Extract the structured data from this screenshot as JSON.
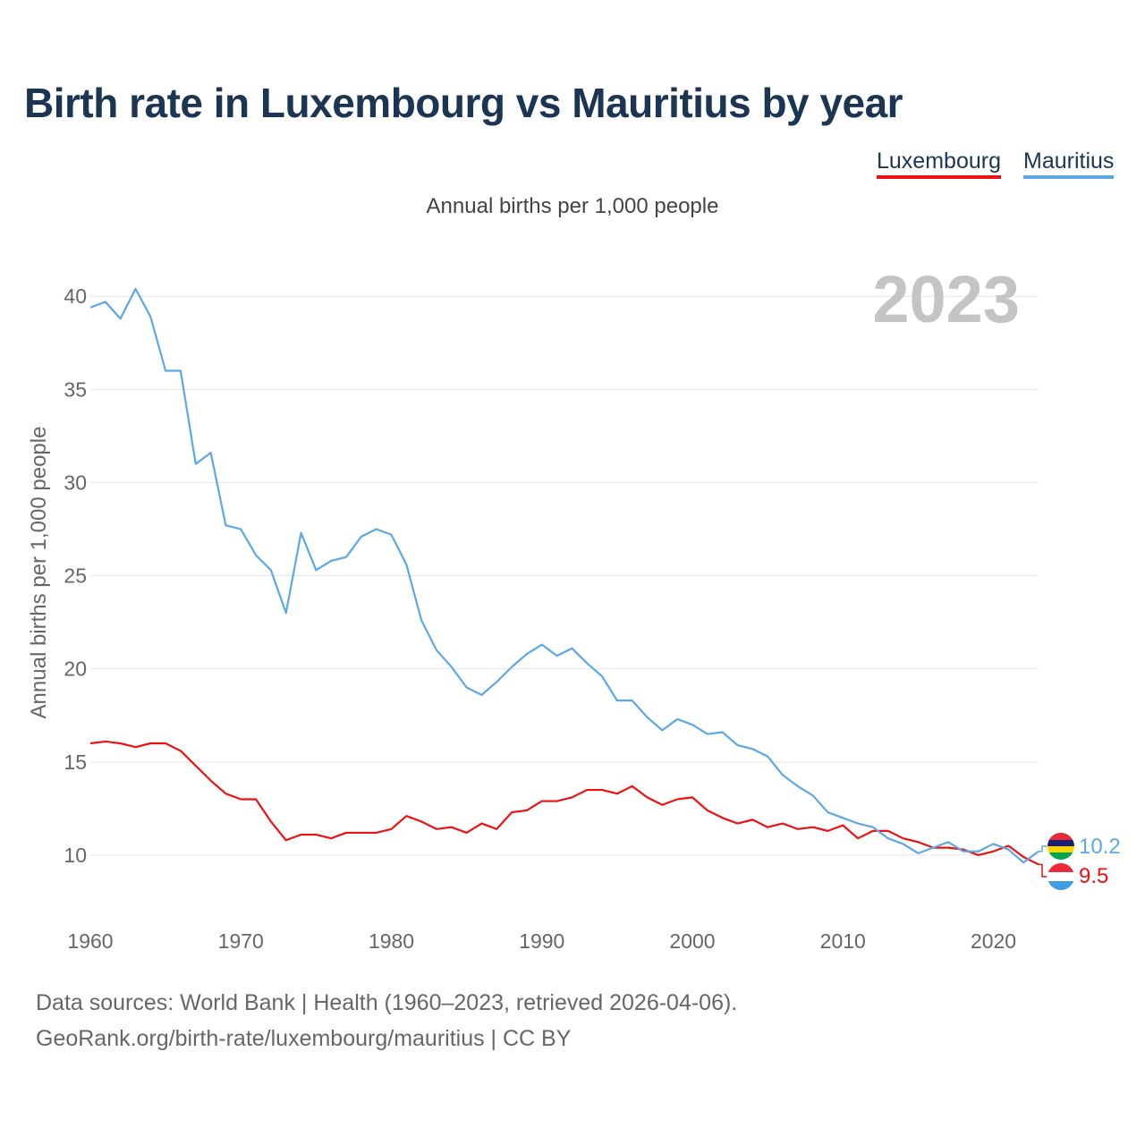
{
  "title": "Birth rate in Luxembourg vs Mauritius by year",
  "subtitle": "Annual births per 1,000 people",
  "legend": [
    {
      "name": "Luxembourg",
      "color": "#ee1111"
    },
    {
      "name": "Mauritius",
      "color": "#5ea7e6"
    }
  ],
  "year_display": "2023",
  "footer": {
    "line1": "Data sources: World Bank | Health (1960–2023, retrieved 2026-04-06).",
    "line2": "GeoRank.org/birth-rate/luxembourg/mauritius | CC BY"
  },
  "chart_data": {
    "type": "line",
    "title": "Birth rate in Luxembourg vs Mauritius by year",
    "ylabel": "Annual births per 1,000 people",
    "xlabel": "",
    "xlim": [
      1960,
      2023
    ],
    "ylim": [
      7.5,
      41.5
    ],
    "x_ticks": [
      1960,
      1970,
      1980,
      1990,
      2000,
      2010,
      2020
    ],
    "y_ticks": [
      10,
      15,
      20,
      25,
      30,
      35,
      40
    ],
    "grid": true,
    "x": [
      1960,
      1961,
      1962,
      1963,
      1964,
      1965,
      1966,
      1967,
      1968,
      1969,
      1970,
      1971,
      1972,
      1973,
      1974,
      1975,
      1976,
      1977,
      1978,
      1979,
      1980,
      1981,
      1982,
      1983,
      1984,
      1985,
      1986,
      1987,
      1988,
      1989,
      1990,
      1991,
      1992,
      1993,
      1994,
      1995,
      1996,
      1997,
      1998,
      1999,
      2000,
      2001,
      2002,
      2003,
      2004,
      2005,
      2006,
      2007,
      2008,
      2009,
      2010,
      2011,
      2012,
      2013,
      2014,
      2015,
      2016,
      2017,
      2018,
      2019,
      2020,
      2021,
      2022,
      2023
    ],
    "series": [
      {
        "name": "Luxembourg",
        "color": "#ee1111",
        "last_label": "9.5",
        "values": [
          16.0,
          16.1,
          16.0,
          15.8,
          16.0,
          16.0,
          15.6,
          14.8,
          14.0,
          13.3,
          13.0,
          13.0,
          11.8,
          10.8,
          11.1,
          11.1,
          10.9,
          11.2,
          11.2,
          11.2,
          11.4,
          12.1,
          11.8,
          11.4,
          11.5,
          11.2,
          11.7,
          11.4,
          12.3,
          12.4,
          12.9,
          12.9,
          13.1,
          13.5,
          13.5,
          13.3,
          13.7,
          13.1,
          12.7,
          13.0,
          13.1,
          12.4,
          12.0,
          11.7,
          11.9,
          11.5,
          11.7,
          11.4,
          11.5,
          11.3,
          11.6,
          10.9,
          11.3,
          11.3,
          10.9,
          10.7,
          10.4,
          10.4,
          10.3,
          10.0,
          10.2,
          10.5,
          9.9,
          9.5
        ]
      },
      {
        "name": "Mauritius",
        "color": "#5ea7e6",
        "last_label": "10.2",
        "values": [
          39.4,
          39.7,
          38.8,
          40.4,
          38.9,
          36.0,
          36.0,
          31.0,
          31.6,
          27.7,
          27.5,
          26.1,
          25.3,
          23.0,
          27.3,
          25.3,
          25.8,
          26.0,
          27.1,
          27.5,
          27.2,
          25.6,
          22.6,
          21.0,
          20.1,
          19.0,
          18.6,
          19.3,
          20.1,
          20.8,
          21.3,
          20.7,
          21.1,
          20.3,
          19.6,
          18.3,
          18.3,
          17.4,
          16.7,
          17.3,
          17.0,
          16.5,
          16.6,
          15.9,
          15.7,
          15.3,
          14.3,
          13.7,
          13.2,
          12.3,
          12.0,
          11.7,
          11.5,
          10.9,
          10.6,
          10.1,
          10.4,
          10.7,
          10.2,
          10.2,
          10.6,
          10.3,
          9.6,
          10.2
        ]
      }
    ]
  }
}
